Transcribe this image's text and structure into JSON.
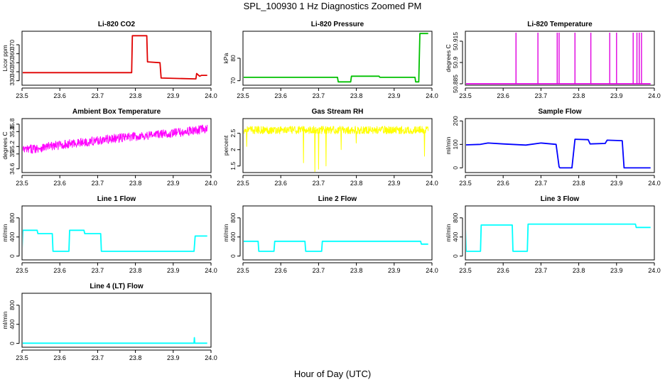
{
  "page": {
    "title": "SPL_100930  1 Hz Diagnostics Zoomed PM",
    "xlabel": "Hour of Day (UTC)"
  },
  "chart_data": [
    {
      "type": "line",
      "title": "Li-820 CO2",
      "ylabel": "Licor ppm",
      "color": "#e00000",
      "xlim": [
        23.5,
        24.0
      ],
      "xticks": [
        "23.5",
        "23.6",
        "23.7",
        "23.8",
        "23.9",
        "24.0"
      ],
      "ylim": [
        325,
        385
      ],
      "yticks": [
        330,
        340,
        350,
        360,
        370
      ],
      "x": [
        23.5,
        23.79,
        23.792,
        23.83,
        23.832,
        23.865,
        23.868,
        23.96,
        23.962,
        23.97,
        23.975,
        23.99
      ],
      "y": [
        339,
        339,
        380,
        380,
        351,
        350,
        333,
        332,
        338,
        335,
        336,
        336
      ]
    },
    {
      "type": "line",
      "title": "Li-820 Pressure",
      "ylabel": "kPa",
      "color": "#00c000",
      "xlim": [
        23.5,
        24.0
      ],
      "xticks": [
        "23.5",
        "23.6",
        "23.7",
        "23.8",
        "23.9",
        "24.0"
      ],
      "ylim": [
        68,
        92
      ],
      "yticks": [
        70,
        80
      ],
      "x": [
        23.5,
        23.75,
        23.752,
        23.785,
        23.787,
        23.86,
        23.862,
        23.955,
        23.957,
        23.965,
        23.968,
        23.99
      ],
      "y": [
        71.5,
        71.5,
        69.5,
        69.5,
        72.0,
        72.0,
        71.5,
        71.5,
        69.5,
        69.5,
        91,
        91
      ]
    },
    {
      "type": "line",
      "title": "Li-820 Temperature",
      "ylabel": "degrees C",
      "color": "#e000e0",
      "xlim": [
        23.5,
        24.0
      ],
      "xticks": [
        "23.5",
        "23.6",
        "23.7",
        "23.8",
        "23.9",
        "24.0"
      ],
      "ylim": [
        50.884,
        50.922
      ],
      "yticks": [
        50.885,
        50.9,
        50.915
      ],
      "x": [
        23.5,
        23.99
      ],
      "y": [
        50.885,
        50.885
      ],
      "spikes_x": [
        23.634,
        23.692,
        23.743,
        23.748,
        23.79,
        23.832,
        23.882,
        23.9,
        23.944,
        23.954,
        23.96,
        23.966
      ],
      "spike_y": 50.921
    },
    {
      "type": "line",
      "title": "Ambient Box Temperature",
      "ylabel": "degrees C",
      "color": "#ff00ff",
      "xlim": [
        23.5,
        24.0
      ],
      "xticks": [
        "23.5",
        "23.6",
        "23.7",
        "23.8",
        "23.9",
        "24.0"
      ],
      "ylim": [
        34.5,
        35.95
      ],
      "yticks": [
        34.6,
        35.0,
        35.2,
        35.6,
        35.8
      ],
      "x": [
        23.5,
        23.55,
        23.6,
        23.65,
        23.7,
        23.75,
        23.8,
        23.85,
        23.9,
        23.95,
        23.99
      ],
      "y": [
        35.1,
        35.17,
        35.24,
        35.3,
        35.36,
        35.42,
        35.47,
        35.52,
        35.56,
        35.62,
        35.68
      ],
      "noise": 0.12
    },
    {
      "type": "line",
      "title": "Gas Stream RH",
      "ylabel": "percent",
      "color": "#ffff00",
      "xlim": [
        23.5,
        24.0
      ],
      "xticks": [
        "23.5",
        "23.6",
        "23.7",
        "23.8",
        "23.9",
        "24.0"
      ],
      "ylim": [
        1.3,
        2.95
      ],
      "yticks": [
        1.5,
        2.0,
        2.5
      ],
      "x": [
        23.5,
        23.99
      ],
      "y": [
        2.6,
        2.6
      ],
      "noise": 0.12,
      "dips_x": [
        23.51,
        23.66,
        23.69,
        23.7,
        23.72,
        23.76,
        23.8,
        23.98
      ],
      "dips_y": [
        2.1,
        1.6,
        1.3,
        1.4,
        1.5,
        2.0,
        2.2,
        1.8
      ]
    },
    {
      "type": "line",
      "title": "Sample Flow",
      "ylabel": "ml/min",
      "color": "#0000ff",
      "xlim": [
        23.5,
        24.0
      ],
      "xticks": [
        "23.5",
        "23.6",
        "23.7",
        "23.8",
        "23.9",
        "24.0"
      ],
      "ylim": [
        -20,
        210
      ],
      "yticks": [
        0,
        100,
        200
      ],
      "x": [
        23.5,
        23.54,
        23.56,
        23.6,
        23.66,
        23.7,
        23.74,
        23.748,
        23.75,
        23.782,
        23.79,
        23.825,
        23.83,
        23.87,
        23.875,
        23.915,
        23.92,
        23.99
      ],
      "y": [
        98,
        100,
        106,
        102,
        97,
        106,
        100,
        5,
        0,
        0,
        122,
        120,
        102,
        104,
        118,
        116,
        0,
        0
      ]
    },
    {
      "type": "line",
      "title": "Line 1 Flow",
      "ylabel": "ml/min",
      "color": "#00ffff",
      "xlim": [
        23.5,
        24.0
      ],
      "xticks": [
        "23.5",
        "23.6",
        "23.7",
        "23.8",
        "23.9",
        "24.0"
      ],
      "ylim": [
        -80,
        1050
      ],
      "yticks": [
        0,
        400,
        800
      ],
      "x": [
        23.5,
        23.502,
        23.54,
        23.542,
        23.58,
        23.582,
        23.624,
        23.626,
        23.664,
        23.666,
        23.708,
        23.71,
        23.955,
        23.958,
        23.99
      ],
      "y": [
        120,
        540,
        540,
        470,
        470,
        100,
        100,
        540,
        540,
        470,
        470,
        100,
        100,
        420,
        420
      ]
    },
    {
      "type": "line",
      "title": "Line 2 Flow",
      "ylabel": "ml/min",
      "color": "#00ffff",
      "xlim": [
        23.5,
        24.0
      ],
      "xticks": [
        "23.5",
        "23.6",
        "23.7",
        "23.8",
        "23.9",
        "24.0"
      ],
      "ylim": [
        -80,
        1050
      ],
      "yticks": [
        0,
        400,
        800
      ],
      "x": [
        23.5,
        23.54,
        23.542,
        23.582,
        23.584,
        23.664,
        23.666,
        23.708,
        23.71,
        23.97,
        23.972,
        23.99
      ],
      "y": [
        310,
        310,
        100,
        100,
        310,
        310,
        100,
        100,
        310,
        310,
        250,
        250
      ]
    },
    {
      "type": "line",
      "title": "Line 3 Flow",
      "ylabel": "ml/min",
      "color": "#00ffff",
      "xlim": [
        23.5,
        24.0
      ],
      "xticks": [
        "23.5",
        "23.6",
        "23.7",
        "23.8",
        "23.9",
        "24.0"
      ],
      "ylim": [
        -80,
        1050
      ],
      "yticks": [
        0,
        400,
        800
      ],
      "x": [
        23.5,
        23.5,
        23.502,
        23.54,
        23.542,
        23.624,
        23.626,
        23.664,
        23.666,
        23.95,
        23.952,
        23.99
      ],
      "y": [
        100,
        620,
        100,
        100,
        650,
        650,
        100,
        100,
        670,
        670,
        600,
        600
      ]
    },
    {
      "type": "line",
      "title": "Line 4 (LT) Flow",
      "ylabel": "ml/min",
      "color": "#00ffff",
      "xlim": [
        23.5,
        24.0
      ],
      "xticks": [
        "23.5",
        "23.6",
        "23.7",
        "23.8",
        "23.9",
        "24.0"
      ],
      "ylim": [
        -80,
        1050
      ],
      "yticks": [
        0,
        400,
        800
      ],
      "x": [
        23.5,
        23.955,
        23.956,
        23.957,
        23.99
      ],
      "y": [
        5,
        5,
        120,
        5,
        5
      ]
    }
  ]
}
